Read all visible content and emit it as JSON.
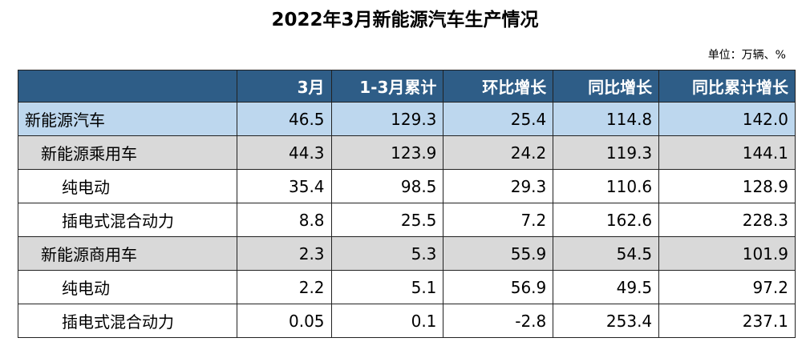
{
  "header": {
    "title": "2022年3月新能源汽车生产情况",
    "unit": "单位：万辆、%"
  },
  "table": {
    "columns": [
      "",
      "3月",
      "1-3月累计",
      "环比增长",
      "同比增长",
      "同比累计增长"
    ],
    "rows": [
      [
        "新能源汽车",
        "46.5",
        "129.3",
        "25.4",
        "114.8",
        "142.0"
      ],
      [
        "新能源乘用车",
        "44.3",
        "123.9",
        "24.2",
        "119.3",
        "144.1"
      ],
      [
        "纯电动",
        "35.4",
        "98.5",
        "29.3",
        "110.6",
        "128.9"
      ],
      [
        "插电式混合动力",
        "8.8",
        "25.5",
        "7.2",
        "162.6",
        "228.3"
      ],
      [
        "新能源商用车",
        "2.3",
        "5.3",
        "55.9",
        "54.5",
        "101.9"
      ],
      [
        "纯电动",
        "2.2",
        "5.1",
        "56.9",
        "49.5",
        "97.2"
      ],
      [
        "插电式混合动力",
        "0.05",
        "0.1",
        "-2.8",
        "253.4",
        "237.1"
      ]
    ]
  }
}
